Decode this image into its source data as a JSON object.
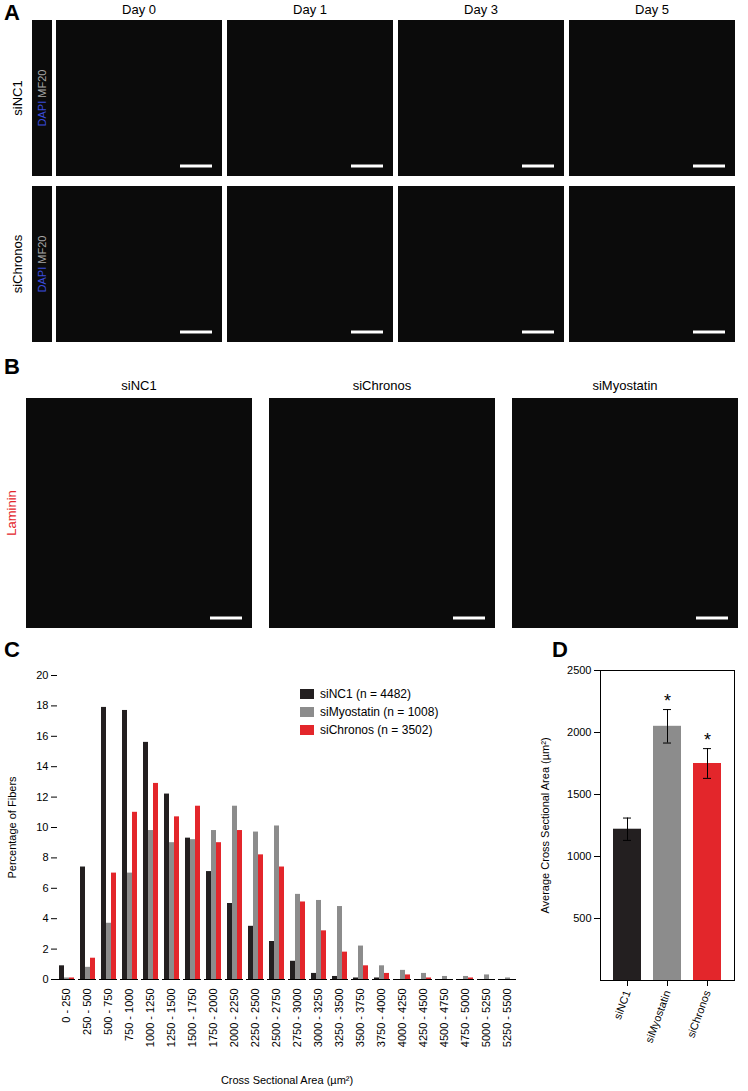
{
  "image_panels": [
    {
      "label": "A",
      "columns": [
        "Day 0",
        "Day 1",
        "Day 3",
        "Day 5"
      ],
      "rows": [
        "siNC1",
        "siChronos"
      ],
      "stains": [
        {
          "text": "DAPI",
          "color": "#3a4bdc"
        },
        {
          "text": "MF20",
          "color": "#a6a6a6"
        }
      ]
    },
    {
      "label": "B",
      "columns": [
        "siNC1",
        "siChronos",
        "siMyostatin"
      ],
      "stains": [
        {
          "text": "Laminin",
          "color": "#e3262b"
        }
      ]
    }
  ],
  "chart_data": [
    {
      "type": "bar",
      "title": "C",
      "xlabel": "Cross Sectional Area (µm²)",
      "ylabel": "Percentage of Fibers",
      "categories": [
        "0 - 250",
        "250 - 500",
        "500 - 750",
        "750 - 1000",
        "1000 - 1250",
        "1250 - 1500",
        "1500 - 1750",
        "1750 - 2000",
        "2000 - 2250",
        "2250 - 2500",
        "2500 - 2750",
        "2750 - 3000",
        "3000 - 3250",
        "3250 - 3500",
        "3500 - 3750",
        "3750 - 4000",
        "4000 - 4250",
        "4250 - 4500",
        "4500 - 4750",
        "4750 - 5000",
        "5000 - 5250",
        "5250 - 5500"
      ],
      "series": [
        {
          "name": "siNC1 (n = 4482)",
          "color": "#231f20",
          "values": [
            0.9,
            7.4,
            17.9,
            17.7,
            15.6,
            12.2,
            9.3,
            7.1,
            5.0,
            3.5,
            2.5,
            1.2,
            0.4,
            0.2,
            0.1,
            0.1,
            0,
            0,
            0,
            0,
            0,
            0
          ]
        },
        {
          "name": "siMyostatin (n = 1008)",
          "color": "#8c8c8c",
          "values": [
            0.1,
            0.8,
            3.7,
            7.0,
            9.8,
            9.0,
            9.2,
            9.8,
            11.4,
            9.7,
            10.1,
            5.6,
            5.2,
            4.8,
            2.2,
            0.9,
            0.6,
            0.4,
            0.2,
            0.2,
            0.3,
            0.1
          ]
        },
        {
          "name": "siChronos (n = 3502)",
          "color": "#e3262b",
          "values": [
            0.1,
            1.4,
            7.0,
            11.0,
            12.9,
            10.7,
            11.4,
            9.0,
            9.8,
            8.2,
            7.4,
            5.1,
            3.2,
            1.8,
            0.9,
            0.4,
            0.3,
            0.1,
            0,
            0.1,
            0,
            0
          ]
        }
      ],
      "ylim": [
        0,
        20
      ],
      "yticks": [
        0,
        2,
        4,
        6,
        8,
        10,
        12,
        14,
        16,
        18,
        20
      ],
      "grid": false,
      "legend": "top-right"
    },
    {
      "type": "bar",
      "title": "D",
      "ylabel": "Average Cross Sectional Area (µm²)",
      "categories": [
        "siNC1",
        "siMyostatin",
        "siChronos"
      ],
      "values": [
        1220,
        2050,
        1750
      ],
      "errors": [
        90,
        135,
        120
      ],
      "colors": [
        "#231f20",
        "#8c8c8c",
        "#e3262b"
      ],
      "ylim": [
        0,
        2500
      ],
      "yticks": [
        500,
        1000,
        1500,
        2000,
        2500
      ],
      "grid": false,
      "annotations": [
        {
          "category": "siMyostatin",
          "text": "*"
        },
        {
          "category": "siChronos",
          "text": "*"
        }
      ]
    }
  ]
}
